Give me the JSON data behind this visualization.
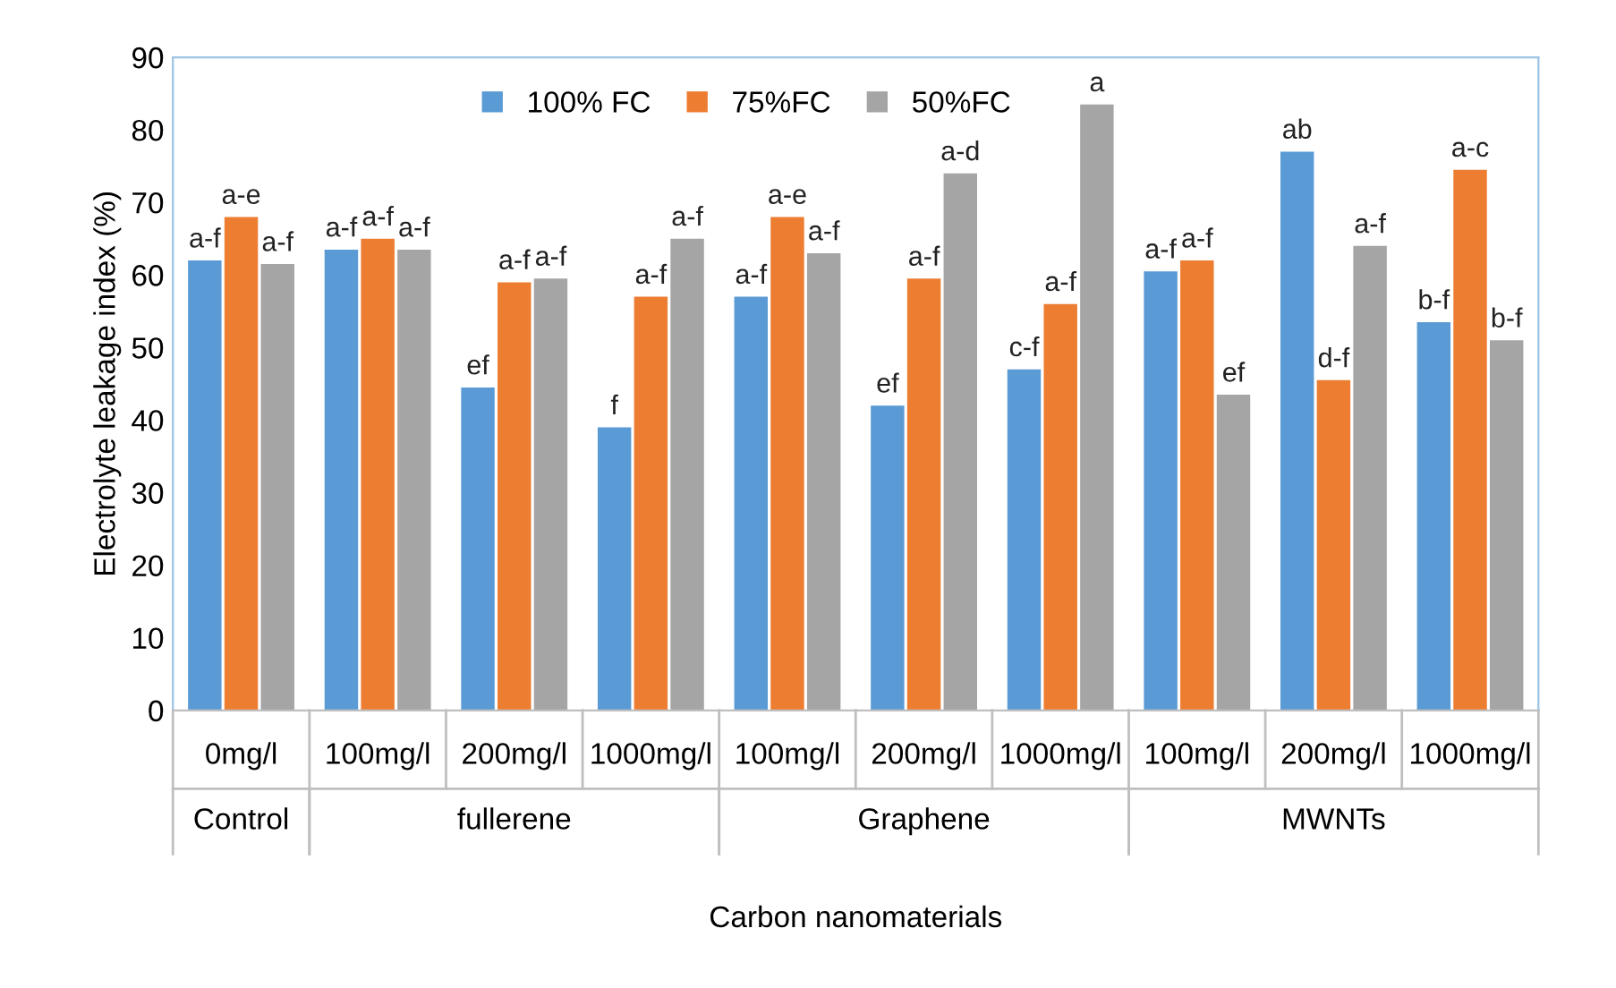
{
  "chart_data": {
    "type": "bar",
    "ylabel": "Electrolyte leakage index (%)",
    "xlabel": "Carbon nanomaterials",
    "categories": [
      "0mg/l",
      "100mg/l",
      "200mg/l",
      "1000mg/l",
      "100mg/l",
      "200mg/l",
      "1000mg/l",
      "100mg/l",
      "200mg/l",
      "1000mg/l"
    ],
    "annotations": [
      "Control",
      "fullerene",
      "Graphene",
      "MWNTs"
    ],
    "series": [
      {
        "name": "100% FC",
        "color": "#5b9bd5",
        "values": [
          62,
          63.5,
          44.5,
          39,
          57,
          42,
          47,
          60.5,
          77,
          53.5
        ],
        "value_labels": [
          "a-f",
          "a-f",
          "ef",
          "f",
          "a-f",
          "ef",
          "c-f",
          "a-f",
          "ab",
          "b-f"
        ]
      },
      {
        "name": "75%FC",
        "color": "#ed7d31",
        "values": [
          68,
          65,
          59,
          57,
          68,
          59.5,
          56,
          62,
          45.5,
          74.5
        ],
        "value_labels": [
          "a-e",
          "a-f",
          "a-f",
          "a-f",
          "a-e",
          "a-f",
          "a-f",
          "a-f",
          "d-f",
          "a-c"
        ]
      },
      {
        "name": "50%FC",
        "color": "#a5a5a5",
        "values": [
          61.5,
          63.5,
          59.5,
          65,
          63,
          74,
          83.5,
          43.5,
          64,
          51
        ],
        "value_labels": [
          "a-f",
          "a-f",
          "a-f",
          "a-f",
          "a-f",
          "a-d",
          "a",
          "ef",
          "a-f",
          "b-f"
        ]
      }
    ],
    "ylim": [
      0,
      90
    ],
    "yticks": [
      0,
      10,
      20,
      30,
      40,
      50,
      60,
      70,
      80,
      90
    ],
    "grid": false,
    "legend": "top"
  }
}
